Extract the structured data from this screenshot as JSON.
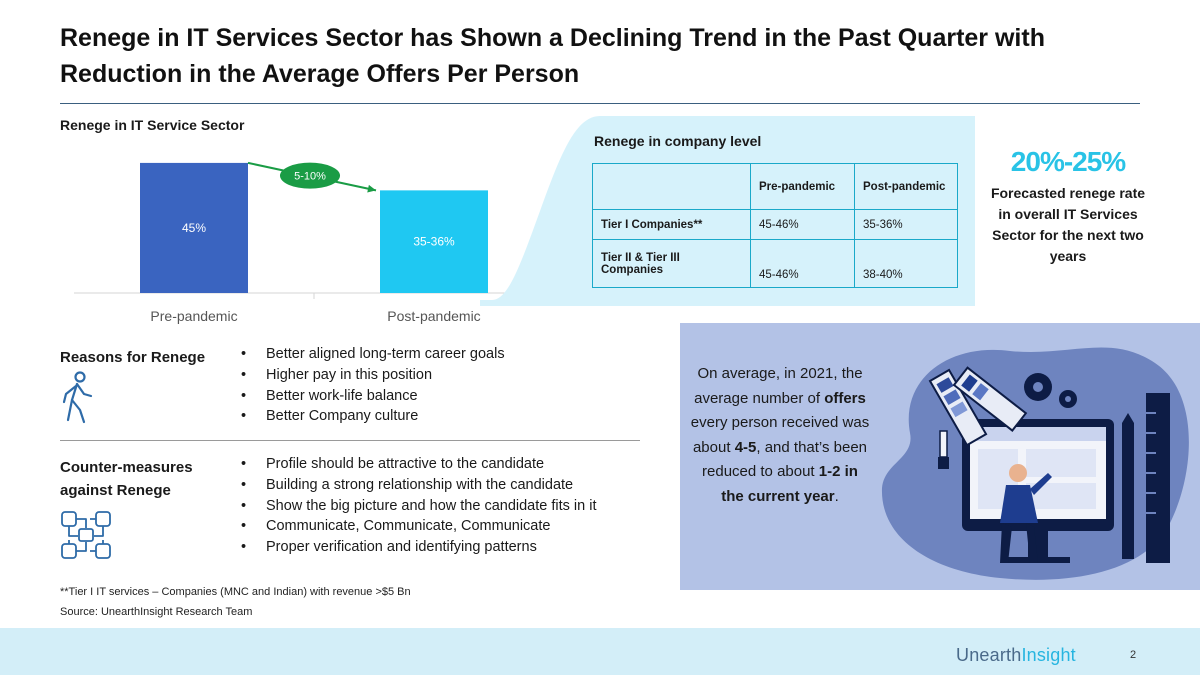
{
  "title": "Renege in IT Services Sector has Shown a Declining Trend in the Past Quarter with Reduction in the Average Offers Per Person",
  "chart_data": {
    "type": "bar",
    "title": "Renege in IT Service Sector",
    "categories": [
      "Pre-pandemic",
      "Post-pandemic"
    ],
    "values": [
      45,
      35.5
    ],
    "data_labels": [
      "45%",
      "35-36%"
    ],
    "colors": [
      "#3a64c0",
      "#1fc8f2"
    ],
    "annotation": "5-10%",
    "ylim": [
      0,
      55
    ]
  },
  "company_table": {
    "title": "Renege in company level",
    "headers": [
      "",
      "Pre-pandemic",
      "Post-pandemic"
    ],
    "rows": [
      [
        "Tier I Companies**",
        "45-46%",
        "35-36%"
      ],
      [
        "Tier II & Tier III Companies",
        "45-46%",
        "38-40%"
      ]
    ]
  },
  "forecast": {
    "value": "20%-25%",
    "text": "Forecasted renege rate in overall IT Services Sector for the next two years"
  },
  "reasons": {
    "heading": "Reasons for Renege",
    "icon": "walking-person-icon",
    "items": [
      "Better aligned long-term career goals",
      "Higher pay in this position",
      " Better work-life balance",
      "Better Company culture"
    ]
  },
  "countermeasures": {
    "heading": "Counter-measures against Renege",
    "icon": "joined-hands-icon",
    "items": [
      "Profile should be attractive to the candidate",
      "Building a strong relationship with the candidate",
      "Show the big picture and how the candidate fits in it",
      "Communicate, Communicate, Communicate",
      "Proper verification and identifying patterns"
    ]
  },
  "offers": {
    "t1": "On average, in 2021, the average number of ",
    "t2": "offers",
    "t3": " every person received was about ",
    "t4": "4-5",
    "t5": ", and that’s been reduced to about ",
    "t6": "1-2 in the current year",
    "t7": "."
  },
  "footnote": "**Tier I IT services – Companies (MNC and Indian) with revenue >$5 Bn",
  "source": "Source: UnearthInsight Research Team",
  "brand": {
    "part1": "Unearth",
    "part2": "Insight"
  },
  "page_number": "2",
  "colors": {
    "accent": "#29c3e6",
    "panel": "#d6f2fb",
    "offer_box": "#b3c2e6",
    "table_border": "#1aa9c9"
  }
}
